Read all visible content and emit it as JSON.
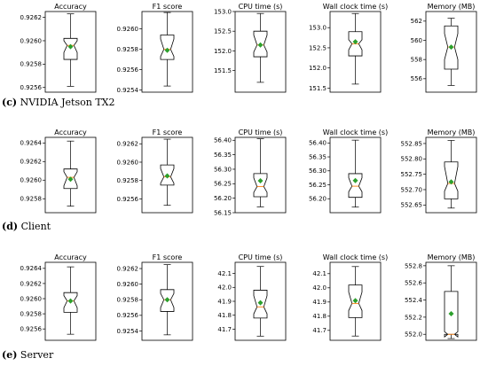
{
  "rows": [
    {
      "caption_letter": "(c)",
      "caption_text": "NVIDIA Jetson TX2",
      "panels": [
        {
          "title": "Accuracy",
          "ticks": [
            0.9256,
            0.9258,
            0.926,
            0.9262
          ],
          "tick_labels": [
            "0.9256",
            "0.9258",
            "0.9260",
            "0.9262"
          ],
          "ylim": [
            0.92556,
            0.92625
          ],
          "box": {
            "whisker_low": 0.92561,
            "q1": 0.92584,
            "median": 0.92596,
            "q3": 0.92602,
            "whisker_high": 0.92623,
            "notch_low": 0.9259,
            "notch_high": 0.926,
            "mean": 0.92595
          }
        },
        {
          "title": "F1 score",
          "ticks": [
            0.9254,
            0.9256,
            0.9258,
            0.926
          ],
          "tick_labels": [
            "0.9254",
            "0.9256",
            "0.9258",
            "0.9260"
          ],
          "ylim": [
            0.92538,
            0.92617
          ],
          "box": {
            "whisker_low": 0.92544,
            "q1": 0.9257,
            "median": 0.9258,
            "q3": 0.92594,
            "whisker_high": 0.92616,
            "notch_low": 0.92573,
            "notch_high": 0.9259,
            "mean": 0.92579
          }
        },
        {
          "title": "CPU time (s)",
          "ticks": [
            151.5,
            152.0,
            152.5,
            153.0
          ],
          "tick_labels": [
            "151.5",
            "152.0",
            "152.5",
            "153.0"
          ],
          "ylim": [
            150.95,
            153.0
          ],
          "box": {
            "whisker_low": 151.2,
            "q1": 151.85,
            "median": 152.15,
            "q3": 152.5,
            "whisker_high": 152.95,
            "notch_low": 151.97,
            "notch_high": 152.4,
            "mean": 152.15
          }
        },
        {
          "title": "Wall clock time (s)",
          "ticks": [
            151.5,
            152.0,
            152.5,
            153.0
          ],
          "tick_labels": [
            "151.5",
            "152.0",
            "152.5",
            "153.0"
          ],
          "ylim": [
            151.4,
            153.4
          ],
          "box": {
            "whisker_low": 151.6,
            "q1": 152.3,
            "median": 152.6,
            "q3": 152.9,
            "whisker_high": 153.35,
            "notch_low": 152.45,
            "notch_high": 152.7,
            "mean": 152.65
          }
        },
        {
          "title": "Memory (MB)",
          "ticks": [
            556,
            558,
            560,
            562
          ],
          "tick_labels": [
            "556",
            "558",
            "560",
            "562"
          ],
          "ylim": [
            554.6,
            563.0
          ],
          "box": {
            "whisker_low": 555.3,
            "q1": 557.0,
            "median": 559.3,
            "q3": 561.5,
            "whisker_high": 562.3,
            "notch_low": 558.0,
            "notch_high": 560.7,
            "mean": 559.3
          }
        }
      ]
    },
    {
      "caption_letter": "(d)",
      "caption_text": "Client",
      "panels": [
        {
          "title": "Accuracy",
          "ticks": [
            0.9258,
            0.926,
            0.9262,
            0.9264
          ],
          "tick_labels": [
            "0.9258",
            "0.9260",
            "0.9262",
            "0.9264"
          ],
          "ylim": [
            0.92565,
            0.92646
          ],
          "box": {
            "whisker_low": 0.92572,
            "q1": 0.92591,
            "median": 0.92603,
            "q3": 0.92612,
            "whisker_high": 0.92642,
            "notch_low": 0.92594,
            "notch_high": 0.92609,
            "mean": 0.92601
          }
        },
        {
          "title": "F1 score",
          "ticks": [
            0.9256,
            0.9258,
            0.926,
            0.9262
          ],
          "tick_labels": [
            "0.9256",
            "0.9258",
            "0.9260",
            "0.9262"
          ],
          "ylim": [
            0.92545,
            0.92627
          ],
          "box": {
            "whisker_low": 0.92553,
            "q1": 0.92575,
            "median": 0.92584,
            "q3": 0.92597,
            "whisker_high": 0.92625,
            "notch_low": 0.92577,
            "notch_high": 0.92593,
            "mean": 0.92585
          }
        },
        {
          "title": "CPU time (s)",
          "ticks": [
            56.15,
            56.2,
            56.25,
            56.3,
            56.35,
            56.4
          ],
          "tick_labels": [
            "56.15",
            "56.20",
            "56.25",
            "56.30",
            "56.35",
            "56.40"
          ],
          "ylim": [
            56.15,
            56.41
          ],
          "box": {
            "whisker_low": 56.17,
            "q1": 56.205,
            "median": 56.24,
            "q3": 56.285,
            "whisker_high": 56.405,
            "notch_low": 56.22,
            "notch_high": 56.27,
            "mean": 56.26
          }
        },
        {
          "title": "Wall clock time (s)",
          "ticks": [
            56.2,
            56.25,
            56.3,
            56.35,
            56.4
          ],
          "tick_labels": [
            "56.20",
            "56.25",
            "56.30",
            "56.35",
            "56.40"
          ],
          "ylim": [
            56.15,
            56.42
          ],
          "box": {
            "whisker_low": 56.17,
            "q1": 56.205,
            "median": 56.245,
            "q3": 56.29,
            "whisker_high": 56.41,
            "notch_low": 56.225,
            "notch_high": 56.275,
            "mean": 56.265
          }
        },
        {
          "title": "Memory (MB)",
          "ticks": [
            552.65,
            552.7,
            552.75,
            552.8,
            552.85
          ],
          "tick_labels": [
            "552.65",
            "552.70",
            "552.75",
            "552.80",
            "552.85"
          ],
          "ylim": [
            552.625,
            552.87
          ],
          "box": {
            "whisker_low": 552.64,
            "q1": 552.67,
            "median": 552.72,
            "q3": 552.79,
            "whisker_high": 552.86,
            "notch_low": 552.695,
            "notch_high": 552.775,
            "mean": 552.725
          }
        }
      ]
    },
    {
      "caption_letter": "(e)",
      "caption_text": "Server",
      "panels": [
        {
          "title": "Accuracy",
          "ticks": [
            0.9256,
            0.9258,
            0.926,
            0.9262,
            0.9264
          ],
          "tick_labels": [
            "0.9256",
            "0.9258",
            "0.9260",
            "0.9262",
            "0.9264"
          ],
          "ylim": [
            0.92545,
            0.92648
          ],
          "box": {
            "whisker_low": 0.92553,
            "q1": 0.92582,
            "median": 0.92597,
            "q3": 0.92608,
            "whisker_high": 0.92642,
            "notch_low": 0.92588,
            "notch_high": 0.92604,
            "mean": 0.92597
          }
        },
        {
          "title": "F1 score",
          "ticks": [
            0.9254,
            0.9256,
            0.9258,
            0.926,
            0.9262
          ],
          "tick_labels": [
            "0.9254",
            "0.9256",
            "0.9258",
            "0.9260",
            "0.9262"
          ],
          "ylim": [
            0.92528,
            0.92628
          ],
          "box": {
            "whisker_low": 0.92535,
            "q1": 0.92565,
            "median": 0.9258,
            "q3": 0.92593,
            "whisker_high": 0.92625,
            "notch_low": 0.9257,
            "notch_high": 0.92588,
            "mean": 0.9258
          }
        },
        {
          "title": "CPU time (s)",
          "ticks": [
            41.7,
            41.8,
            41.9,
            42.0,
            42.1
          ],
          "tick_labels": [
            "41.7",
            "41.8",
            "41.9",
            "42.0",
            "42.1"
          ],
          "ylim": [
            41.62,
            42.18
          ],
          "box": {
            "whisker_low": 41.65,
            "q1": 41.78,
            "median": 41.86,
            "q3": 41.98,
            "whisker_high": 42.15,
            "notch_low": 41.81,
            "notch_high": 41.94,
            "mean": 41.89
          }
        },
        {
          "title": "Wall clock time (s)",
          "ticks": [
            41.7,
            41.8,
            41.9,
            42.0,
            42.1
          ],
          "tick_labels": [
            "41.7",
            "41.8",
            "41.9",
            "42.0",
            "42.1"
          ],
          "ylim": [
            41.63,
            42.18
          ],
          "box": {
            "whisker_low": 41.66,
            "q1": 41.79,
            "median": 41.89,
            "q3": 42.02,
            "whisker_high": 42.15,
            "notch_low": 41.84,
            "notch_high": 41.97,
            "mean": 41.91
          }
        },
        {
          "title": "Memory (MB)",
          "ticks": [
            552.0,
            552.2,
            552.4,
            552.6,
            552.8
          ],
          "tick_labels": [
            "552.0",
            "552.2",
            "552.4",
            "552.6",
            "552.8"
          ],
          "ylim": [
            551.93,
            552.84
          ],
          "box": {
            "whisker_low": 551.95,
            "q1": 552.0,
            "median": 552.0,
            "q3": 552.5,
            "whisker_high": 552.8,
            "notch_low": 551.97,
            "notch_high": 552.03,
            "mean": 552.24
          }
        }
      ]
    }
  ],
  "colors": {
    "mean_marker": "#2ca02c",
    "box": "#000000",
    "median": "#ff7f0e"
  },
  "chart_data": [
    {
      "type": "box",
      "caption": "NVIDIA Jetson TX2",
      "subplots": [
        "Accuracy",
        "F1 score",
        "CPU time (s)",
        "Wall clock time (s)",
        "Memory (MB)"
      ]
    },
    {
      "type": "box",
      "caption": "Client",
      "subplots": [
        "Accuracy",
        "F1 score",
        "CPU time (s)",
        "Wall clock time (s)",
        "Memory (MB)"
      ]
    },
    {
      "type": "box",
      "caption": "Server",
      "subplots": [
        "Accuracy",
        "F1 score",
        "CPU time (s)",
        "Wall clock time (s)",
        "Memory (MB)"
      ]
    }
  ]
}
